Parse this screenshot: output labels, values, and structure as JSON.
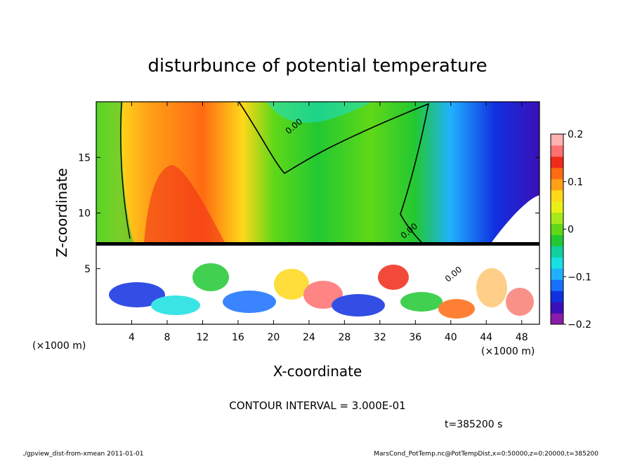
{
  "chart_data": {
    "type": "heatmap",
    "title": "disturbunce of potential temperature",
    "xlabel": "X-coordinate",
    "ylabel": "Z-coordinate",
    "x_unit_left": "(×1000 m)",
    "x_unit_right": "(×1000 m)",
    "xlim": [
      0,
      50
    ],
    "ylim": [
      0,
      20
    ],
    "x_ticks": [
      {
        "value": 4,
        "label": "4"
      },
      {
        "value": 8,
        "label": "8"
      },
      {
        "value": 12,
        "label": "12"
      },
      {
        "value": 16,
        "label": "16"
      },
      {
        "value": 20,
        "label": "20"
      },
      {
        "value": 24,
        "label": "24"
      },
      {
        "value": 28,
        "label": "28"
      },
      {
        "value": 32,
        "label": "32"
      },
      {
        "value": 36,
        "label": "36"
      },
      {
        "value": 40,
        "label": "40"
      },
      {
        "value": 44,
        "label": "44"
      },
      {
        "value": 48,
        "label": "48"
      }
    ],
    "y_ticks": [
      {
        "value": 5,
        "label": "5"
      },
      {
        "value": 10,
        "label": "10"
      },
      {
        "value": 15,
        "label": "15"
      }
    ],
    "contour_labels": [
      {
        "x": 22.5,
        "z": 17.6,
        "label": "0.00"
      },
      {
        "x": 35.5,
        "z": 8.2,
        "label": "0.00"
      },
      {
        "x": 40.5,
        "z": 4.3,
        "label": "0.00"
      }
    ],
    "colorbar": {
      "min": -0.2,
      "max": 0.2,
      "ticks": [
        {
          "value": 0.2,
          "label": "0.2"
        },
        {
          "value": 0.1,
          "label": "0.1"
        },
        {
          "value": 0,
          "label": "0"
        },
        {
          "value": -0.1,
          "label": "−0.1"
        },
        {
          "value": -0.2,
          "label": "−0.2"
        }
      ],
      "colors": [
        "#8b1aa8",
        "#3a10b8",
        "#1030e0",
        "#1870ff",
        "#20b0ff",
        "#18e0e0",
        "#10d0a0",
        "#22c832",
        "#60d818",
        "#a8e818",
        "#e8f018",
        "#ffd81a",
        "#ffa018",
        "#ff6a12",
        "#f02a18",
        "#ff7070",
        "#ffb0b0"
      ]
    },
    "contour_interval_text": "CONTOUR INTERVAL = 3.000E-01",
    "time_text": "t=385200 s"
  },
  "footer": {
    "left": "./gpview_dist-from-xmean  2011-01-01",
    "right": "MarsCond_PotTemp.nc@PotTempDist,x=0:50000,z=0:20000,t=385200"
  }
}
